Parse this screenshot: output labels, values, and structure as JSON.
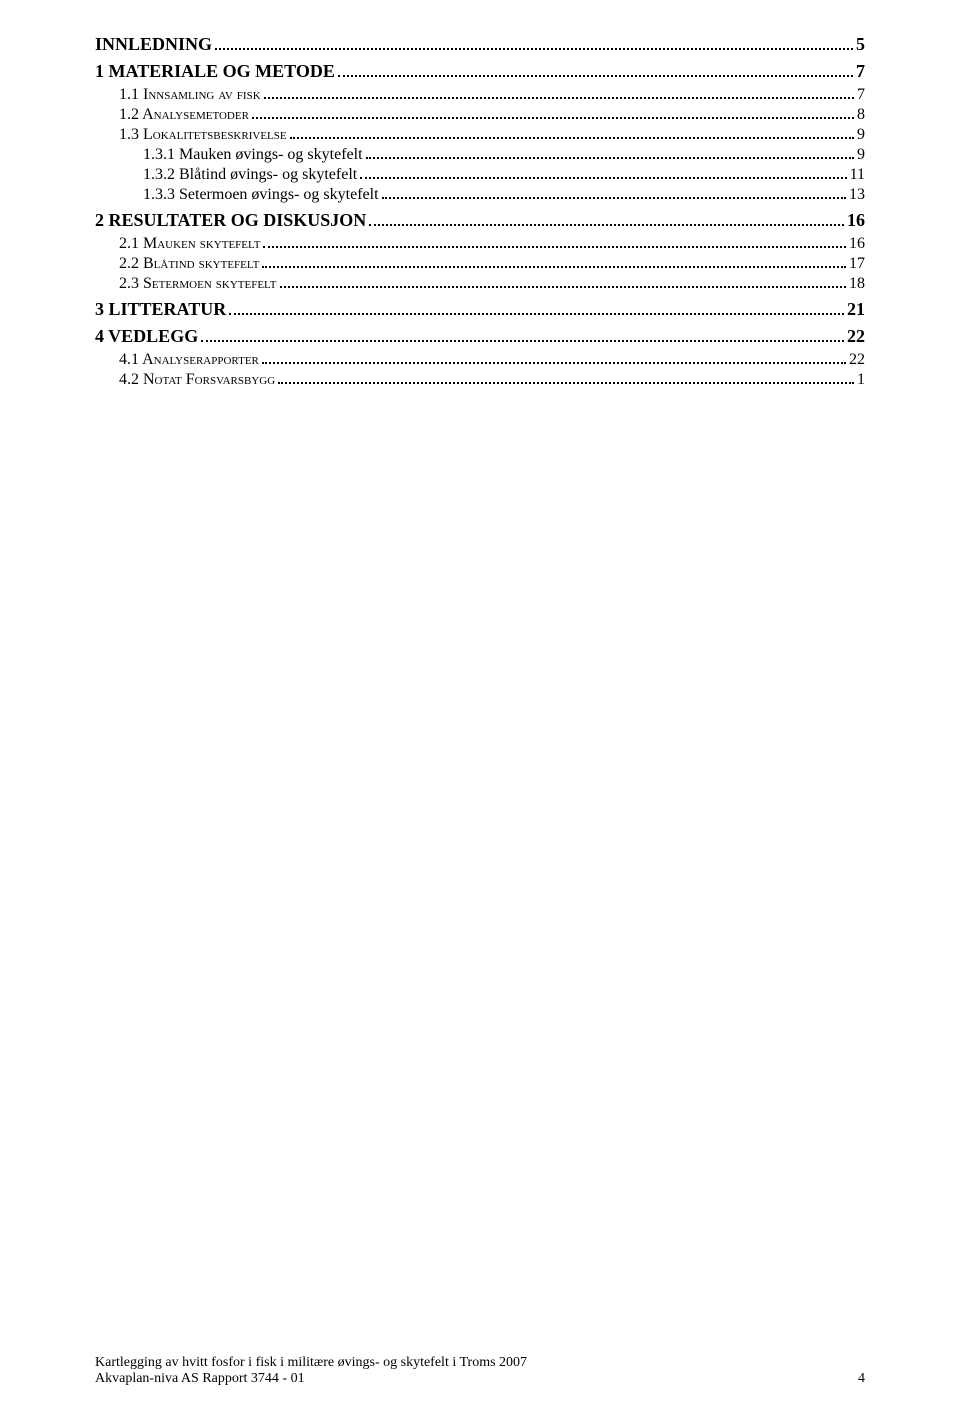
{
  "toc": [
    {
      "level": "h1",
      "label": "INNLEDNING",
      "page": "5"
    },
    {
      "level": "h1",
      "label": "1 MATERIALE OG METODE",
      "page": "7"
    },
    {
      "level": "h2",
      "label": "1.1 Innsamling av fisk",
      "page": "7"
    },
    {
      "level": "h2",
      "label": "1.2 Analysemetoder",
      "page": "8"
    },
    {
      "level": "h2",
      "label": "1.3 Lokalitetsbeskrivelse",
      "page": "9"
    },
    {
      "level": "h3",
      "label": "1.3.1 Mauken øvings- og skytefelt",
      "page": "9"
    },
    {
      "level": "h3",
      "label": "1.3.2 Blåtind øvings- og skytefelt",
      "page": "11"
    },
    {
      "level": "h3",
      "label": "1.3.3 Setermoen øvings- og skytefelt",
      "page": "13"
    },
    {
      "level": "h1",
      "label": "2 RESULTATER OG DISKUSJON",
      "page": "16"
    },
    {
      "level": "h2",
      "label": "2.1 Mauken skytefelt",
      "page": "16"
    },
    {
      "level": "h2",
      "label": "2.2 Blåtind skytefelt",
      "page": "17"
    },
    {
      "level": "h2",
      "label": "2.3 Setermoen skytefelt",
      "page": "18"
    },
    {
      "level": "h1",
      "label": "3 LITTERATUR",
      "page": "21"
    },
    {
      "level": "h1",
      "label": "4 VEDLEGG",
      "page": "22"
    },
    {
      "level": "h2",
      "label": "4.1 Analyserapporter",
      "page": "22"
    },
    {
      "level": "h2",
      "label": "4.2 Notat Forsvarsbygg",
      "page": "1"
    }
  ],
  "footer": {
    "line1": "Kartlegging av hvitt fosfor i fisk i militære øvings- og skytefelt i Troms 2007",
    "line2_left": "Akvaplan-niva AS Rapport 3744 - 01",
    "line2_right": "4"
  }
}
